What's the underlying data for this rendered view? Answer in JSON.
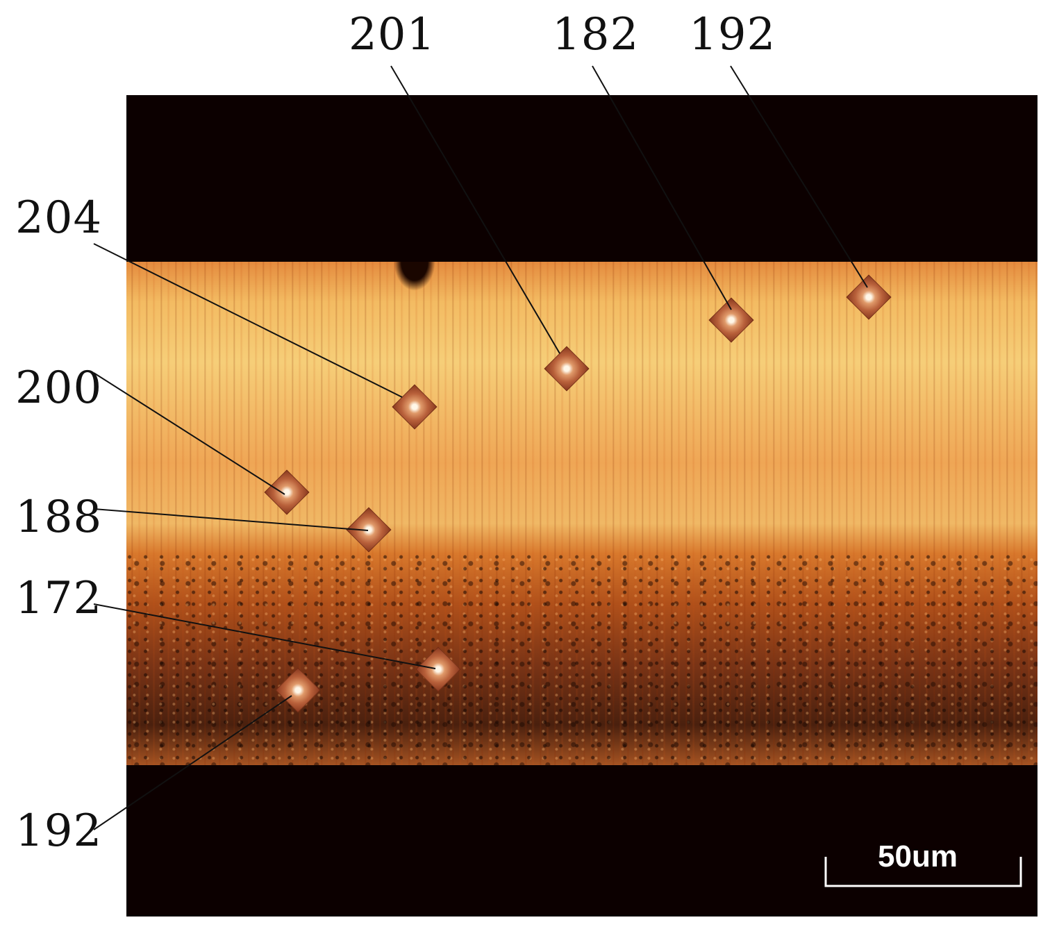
{
  "figure": {
    "labels": {
      "top_left": "201",
      "top_mid": "182",
      "top_right": "192",
      "left_1": "204",
      "left_2": "200",
      "left_3": "188",
      "left_4": "172",
      "left_5": "192"
    },
    "scale_bar": "50um"
  },
  "colors": {
    "background": "#0c0000",
    "leader_lines": "#111111",
    "scale_bar": "#ffffff"
  }
}
